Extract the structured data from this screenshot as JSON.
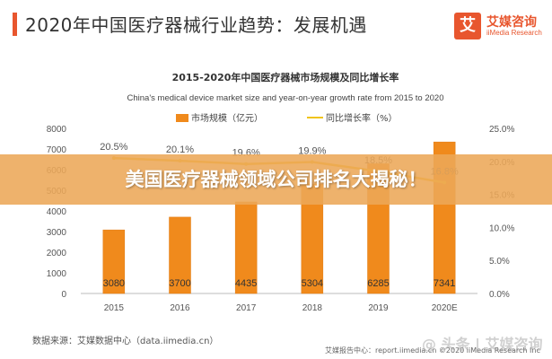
{
  "header": {
    "title": "2020年中国医疗器械行业趋势：发展机遇"
  },
  "logo": {
    "mark": "艾",
    "name_cn": "艾媒咨询",
    "name_en": "iiMedia Research"
  },
  "banner": {
    "text": "美国医疗器械领域公司排名大揭秘！"
  },
  "source": "数据来源：艾媒数据中心（data.iimedia.cn）",
  "footer": "艾媒报告中心：report.iimedia.cn ©2020 iiMedia Research Inc",
  "watermark": "@ 头条 | 艾媒咨询",
  "colors": {
    "bar": "#f08a1c",
    "line": "#f0c419",
    "accent": "#e8562e"
  },
  "chart_data": {
    "type": "bar",
    "title": "2015-2020年中国医疗器械市场规模及同比增长率",
    "subtitle": "China's medical device market size and year-on-year growth rate from 2015 to 2020",
    "categories": [
      "2015",
      "2016",
      "2017",
      "2018",
      "2019",
      "2020E"
    ],
    "series": [
      {
        "name": "市场规模（亿元）",
        "type": "bar",
        "axis": "left",
        "values": [
          3080,
          3700,
          4435,
          5304,
          6285,
          7341
        ]
      },
      {
        "name": "同比增长率（%）",
        "type": "line",
        "axis": "right",
        "values": [
          20.5,
          20.1,
          19.6,
          19.9,
          18.5,
          16.8
        ]
      }
    ],
    "bar_labels": [
      "3080",
      "3700",
      "4435",
      "5304",
      "6285",
      "7341"
    ],
    "line_labels": [
      "20.5%",
      "20.1%",
      "19.6%",
      "19.9%",
      "18.5%",
      "16.8%"
    ],
    "y_left": {
      "ticks": [
        "0",
        "1000",
        "2000",
        "3000",
        "4000",
        "5000",
        "6000",
        "7000",
        "8000"
      ],
      "min": 0,
      "max": 8000
    },
    "y_right": {
      "ticks": [
        "0.0%",
        "5.0%",
        "10.0%",
        "15.0%",
        "20.0%",
        "25.0%"
      ],
      "min": 0,
      "max": 25
    },
    "grid": false,
    "legend": "top-center"
  }
}
